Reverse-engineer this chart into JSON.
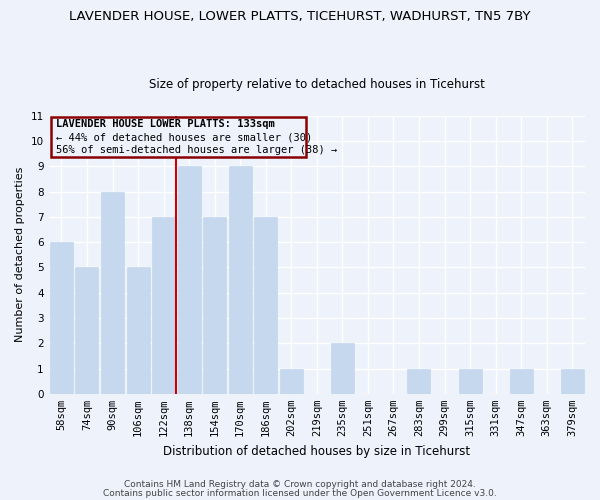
{
  "title": "LAVENDER HOUSE, LOWER PLATTS, TICEHURST, WADHURST, TN5 7BY",
  "subtitle": "Size of property relative to detached houses in Ticehurst",
  "xlabel": "Distribution of detached houses by size in Ticehurst",
  "ylabel": "Number of detached properties",
  "categories": [
    "58sqm",
    "74sqm",
    "90sqm",
    "106sqm",
    "122sqm",
    "138sqm",
    "154sqm",
    "170sqm",
    "186sqm",
    "202sqm",
    "219sqm",
    "235sqm",
    "251sqm",
    "267sqm",
    "283sqm",
    "299sqm",
    "315sqm",
    "331sqm",
    "347sqm",
    "363sqm",
    "379sqm"
  ],
  "values": [
    6,
    5,
    8,
    5,
    7,
    9,
    7,
    9,
    7,
    1,
    0,
    2,
    0,
    0,
    1,
    0,
    1,
    0,
    1,
    0,
    1
  ],
  "bar_color": "#c5d8ee",
  "bar_edge_color": "#c5d8ee",
  "property_line_x": 4.5,
  "annotation_line1": "LAVENDER HOUSE LOWER PLATTS: 133sqm",
  "annotation_line2": "← 44% of detached houses are smaller (30)",
  "annotation_line3": "56% of semi-detached houses are larger (38) →",
  "ylim": [
    0,
    11
  ],
  "yticks": [
    0,
    1,
    2,
    3,
    4,
    5,
    6,
    7,
    8,
    9,
    10,
    11
  ],
  "footer1": "Contains HM Land Registry data © Crown copyright and database right 2024.",
  "footer2": "Contains public sector information licensed under the Open Government Licence v3.0.",
  "title_fontsize": 9.5,
  "subtitle_fontsize": 8.5,
  "xlabel_fontsize": 8.5,
  "ylabel_fontsize": 8.0,
  "tick_fontsize": 7.5,
  "annot_fontsize": 7.5,
  "footer_fontsize": 6.5,
  "bg_color": "#edf2fb",
  "grid_color": "#ffffff",
  "annot_box_color": "#8b0000",
  "red_line_color": "#cc0000"
}
